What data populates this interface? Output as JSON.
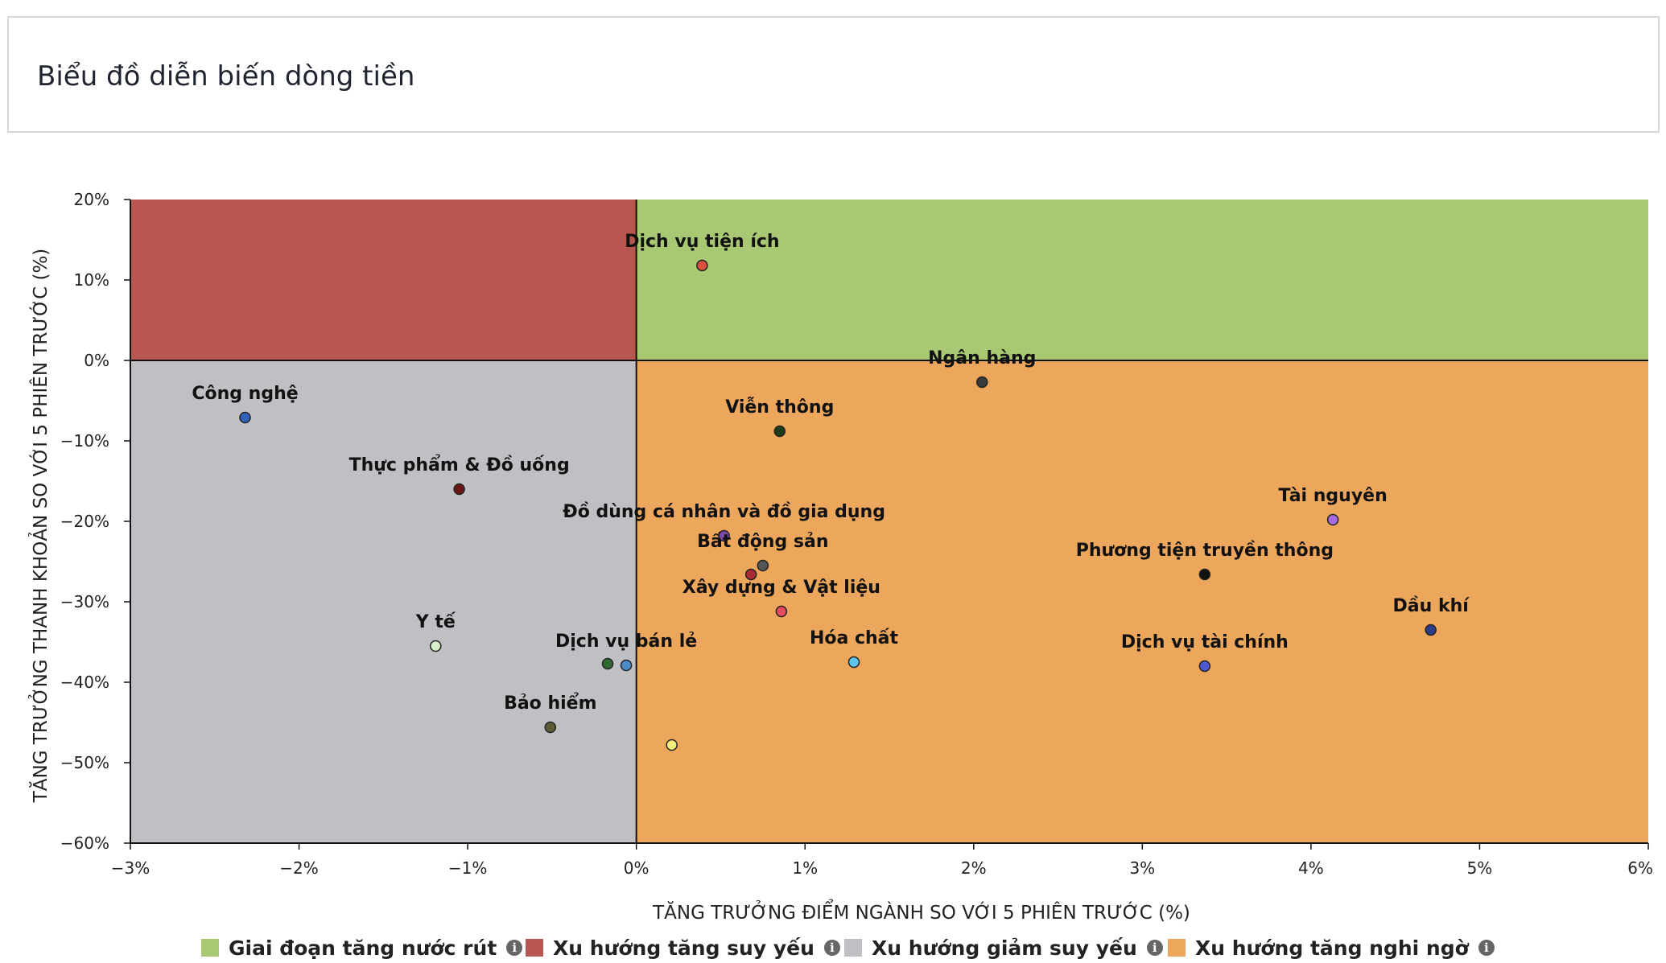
{
  "header": {
    "title": "Biểu đồ diễn biến dòng tiền"
  },
  "chart_data": {
    "type": "scatter",
    "title": "Biểu đồ diễn biến dòng tiền",
    "xlabel": "TĂNG TRƯỞNG ĐIỂM NGÀNH SO VỚI 5 PHIÊN TRƯỚC (%)",
    "ylabel": "TĂNG TRƯỞNG THANH KHOẢN SO VỚI 5 PHIÊN TRƯỚC (%)",
    "xlim": [
      -3,
      6
    ],
    "ylim": [
      -60,
      20
    ],
    "x_ticks": [
      "−3%",
      "−2%",
      "−1%",
      "0%",
      "1%",
      "2%",
      "3%",
      "4%",
      "5%",
      "6%"
    ],
    "x_tick_values": [
      -3,
      -2,
      -1,
      0,
      1,
      2,
      3,
      4,
      5,
      6
    ],
    "y_ticks": [
      "20%",
      "10%",
      "0%",
      "−10%",
      "−20%",
      "−30%",
      "−40%",
      "−50%",
      "−60%"
    ],
    "y_tick_values": [
      20,
      10,
      0,
      -10,
      -20,
      -30,
      -40,
      -50,
      -60
    ],
    "quadrants": [
      {
        "name": "Giai đoạn tăng nước rút",
        "color": "#a9c874",
        "x_range": [
          0,
          6
        ],
        "y_range": [
          0,
          20
        ]
      },
      {
        "name": "Xu hướng tăng suy yếu",
        "color": "#b85650",
        "x_range": [
          -3,
          0
        ],
        "y_range": [
          0,
          20
        ]
      },
      {
        "name": "Xu hướng giảm suy yếu",
        "color": "#c0c0c4",
        "x_range": [
          -3,
          0
        ],
        "y_range": [
          -60,
          0
        ]
      },
      {
        "name": "Xu hướng tăng nghi ngờ",
        "color": "#eca75c",
        "x_range": [
          0,
          6
        ],
        "y_range": [
          -60,
          0
        ]
      }
    ],
    "points": [
      {
        "label": "Dịch vụ tiện ích",
        "x": 0.39,
        "y": 11.8,
        "color": "#d9503f"
      },
      {
        "label": "Ngân hàng",
        "x": 2.05,
        "y": -2.7,
        "color": "#3a3a3a"
      },
      {
        "label": "Công nghệ",
        "x": -2.32,
        "y": -7.1,
        "color": "#2f62b8"
      },
      {
        "label": "Viễn thông",
        "x": 0.85,
        "y": -8.8,
        "color": "#1f3a1c"
      },
      {
        "label": "Thực phẩm & Đồ uống",
        "x": -1.05,
        "y": -16.0,
        "color": "#6b1515"
      },
      {
        "label": "Đồ dùng cá nhân và đồ gia dụng",
        "x": 0.52,
        "y": -21.8,
        "color": "#7a4aa8"
      },
      {
        "label": "Bất động sản",
        "x": 0.75,
        "y": -25.5,
        "color": "#555555"
      },
      {
        "label": "",
        "x": 0.68,
        "y": -26.6,
        "color": "#a82b35"
      },
      {
        "label": "Xây dựng & Vật liệu",
        "x": 0.86,
        "y": -31.2,
        "color": "#e64a5e"
      },
      {
        "label": "Tài nguyên",
        "x": 4.13,
        "y": -19.8,
        "color": "#a56be0"
      },
      {
        "label": "Phương tiện truyền thông",
        "x": 3.37,
        "y": -26.6,
        "color": "#111111"
      },
      {
        "label": "Dầu khí",
        "x": 4.71,
        "y": -33.5,
        "color": "#2a3f8a"
      },
      {
        "label": "Y tế",
        "x": -1.19,
        "y": -35.5,
        "color": "#d8f0c8"
      },
      {
        "label": "",
        "x": -0.17,
        "y": -37.7,
        "color": "#2d6b2e"
      },
      {
        "label": "Dịch vụ bán lẻ",
        "x": -0.06,
        "y": -37.9,
        "color": "#4a8cc8"
      },
      {
        "label": "Hóa chất",
        "x": 1.29,
        "y": -37.5,
        "color": "#5fc5ea"
      },
      {
        "label": "Dịch vụ tài chính",
        "x": 3.37,
        "y": -38.0,
        "color": "#5058d0"
      },
      {
        "label": "Bảo hiểm",
        "x": -0.51,
        "y": -45.6,
        "color": "#5d5a3a"
      },
      {
        "label": "",
        "x": 0.21,
        "y": -47.8,
        "color": "#f3ee77"
      }
    ],
    "legend": [
      {
        "label": "Giai đoạn tăng nước rút",
        "color": "#a9c874"
      },
      {
        "label": "Xu hướng tăng suy yếu",
        "color": "#b85650"
      },
      {
        "label": "Xu hướng giảm suy yếu",
        "color": "#c0c0c4"
      },
      {
        "label": "Xu hướng tăng nghi ngờ",
        "color": "#eca75c"
      }
    ],
    "legend_position": "bottom",
    "grid": false
  }
}
